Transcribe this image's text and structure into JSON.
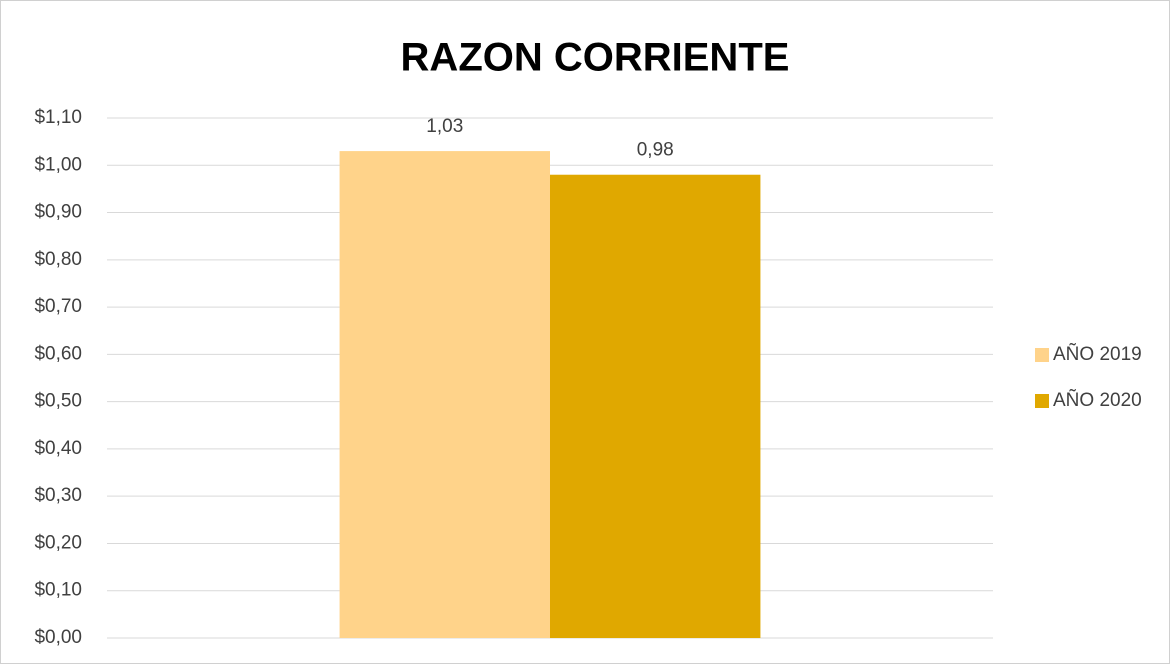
{
  "chart_data": {
    "type": "bar",
    "title": "RAZON CORRIENTE",
    "categories": [
      null
    ],
    "series": [
      {
        "name": "AÑO 2019",
        "color": "#ffd38a",
        "values": [
          1.03
        ],
        "value_labels": [
          "1,03"
        ]
      },
      {
        "name": "AÑO 2020",
        "color": "#e0a800",
        "values": [
          0.98
        ],
        "value_labels": [
          "0,98"
        ]
      }
    ],
    "ylim": [
      0,
      1.1
    ],
    "yticks": [
      {
        "value": 0,
        "label": "$0,00"
      },
      {
        "value": 0.1,
        "label": "$0,10"
      },
      {
        "value": 0.2,
        "label": "$0,20"
      },
      {
        "value": 0.3,
        "label": "$0,30"
      },
      {
        "value": 0.4,
        "label": "$0,40"
      },
      {
        "value": 0.5,
        "label": "$0,50"
      },
      {
        "value": 0.6,
        "label": "$0,60"
      },
      {
        "value": 0.7,
        "label": "$0,70"
      },
      {
        "value": 0.8,
        "label": "$0,80"
      },
      {
        "value": 0.9,
        "label": "$0,90"
      },
      {
        "value": 1.0,
        "label": "$1,00"
      },
      {
        "value": 1.1,
        "label": "$1,10"
      }
    ],
    "grid": true,
    "legend": "right"
  }
}
